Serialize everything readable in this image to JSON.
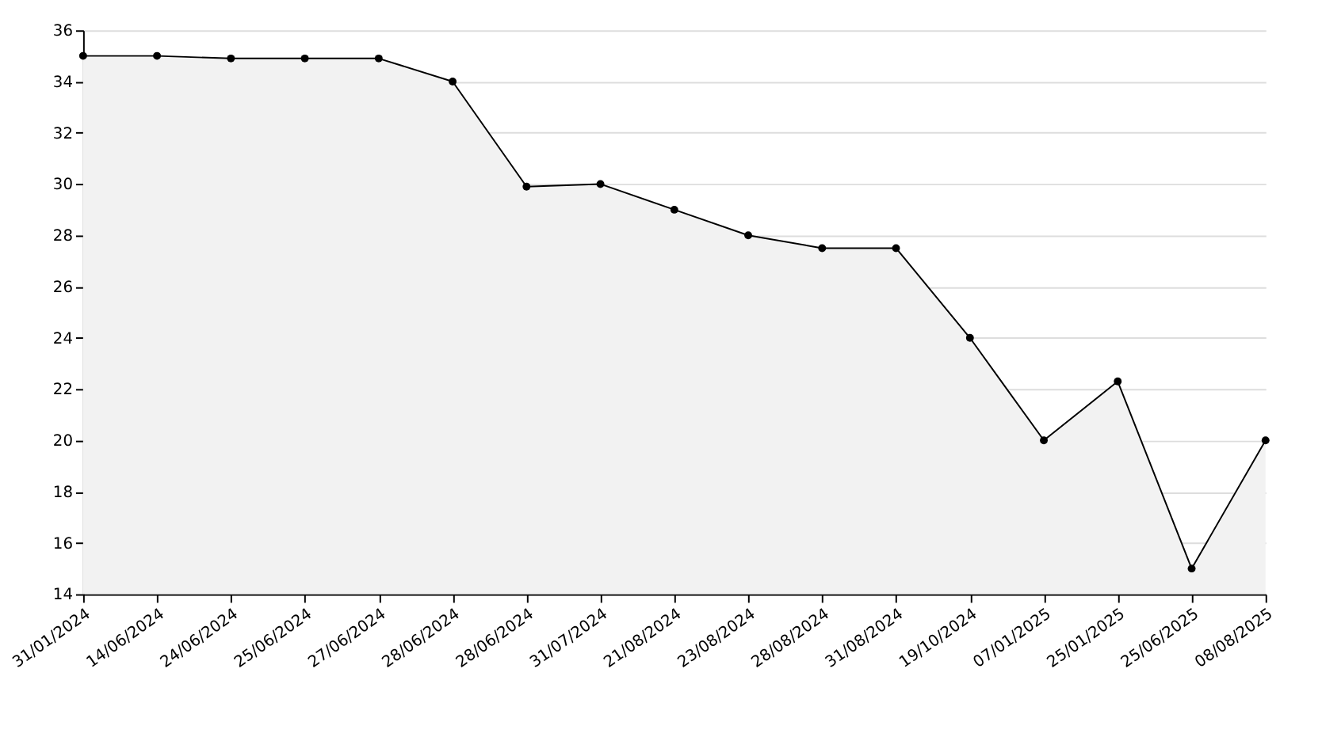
{
  "chart_data": {
    "type": "area",
    "categories": [
      "31/01/2024",
      "14/06/2024",
      "24/06/2024",
      "25/06/2024",
      "27/06/2024",
      "28/06/2024",
      "28/06/2024",
      "31/07/2024",
      "21/08/2024",
      "23/08/2024",
      "28/08/2024",
      "31/08/2024",
      "19/10/2024",
      "07/01/2025",
      "25/01/2025",
      "25/06/2025",
      "08/08/2025"
    ],
    "series": [
      {
        "color": "#000000",
        "values": [
          35,
          35,
          34.9,
          34.9,
          34.9,
          34,
          29.9,
          30,
          29,
          28,
          27.5,
          27.5,
          24,
          20,
          22.3,
          15,
          20
        ]
      }
    ],
    "ylim": [
      14,
      36
    ],
    "yticks": [
      14,
      16,
      18,
      20,
      22,
      24,
      26,
      28,
      30,
      32,
      34,
      36
    ],
    "grid": "y",
    "marker": "circle",
    "line_style": "solid"
  }
}
